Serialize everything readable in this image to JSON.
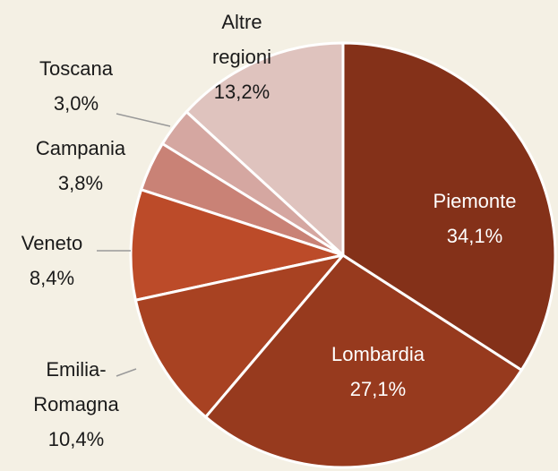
{
  "chart_data": {
    "type": "pie",
    "categories": [
      "Piemonte",
      "Lombardia",
      "Emilia-Romagna",
      "Veneto",
      "Campania",
      "Toscana",
      "Altre regioni"
    ],
    "values": [
      34.1,
      27.1,
      10.4,
      8.4,
      3.8,
      3.0,
      13.2
    ],
    "value_labels": [
      "34,1%",
      "27,1%",
      "10,4%",
      "8,4%",
      "3,8%",
      "3,0%",
      "13,2%"
    ],
    "colors": [
      "#843119",
      "#973a1e",
      "#a84222",
      "#bc4b29",
      "#c98276",
      "#d5a7a1",
      "#dfc3be"
    ]
  }
}
